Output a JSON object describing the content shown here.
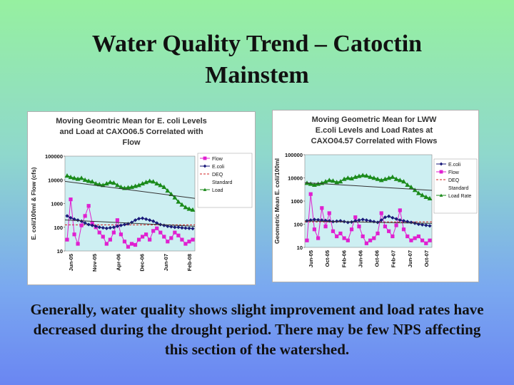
{
  "slide": {
    "title": "Water Quality Trend – Catoctin Mainstem",
    "caption": "Generally, water quality shows slight improvement and load rates have decreased during the drought period.  There may be few NPS affecting this section of the watershed."
  },
  "colors": {
    "plot_bg": "#cdeff2",
    "flow": "#e020d0",
    "ecoli": "#1a1a7a",
    "deq": "#d02020",
    "load": "#1a8a1a",
    "trend": "#333333"
  },
  "chart_data": [
    {
      "type": "line",
      "title_lines": [
        "Moving Geomtric Mean for E. coli Levels",
        "and Load at CAXO06.5 Correlated with",
        "Flow"
      ],
      "ylabel": "E. coli/100ml & Flow (cfs)",
      "yscale": "log",
      "ylim": [
        10,
        100000
      ],
      "yticks": [
        "100000",
        "10000",
        "1000",
        "100",
        "10"
      ],
      "xticks": [
        "Jun-05",
        "Nov-05",
        "Apr-06",
        "Dec-06",
        "Jun-07",
        "Feb-08"
      ],
      "legend": [
        "Flow",
        "E.coli",
        "DEQ",
        "Standard",
        "Load"
      ],
      "legend_position": "right",
      "deq_standard": 126,
      "series": [
        {
          "name": "Flow",
          "values": [
            30,
            1500,
            50,
            20,
            120,
            300,
            800,
            150,
            100,
            60,
            40,
            20,
            30,
            60,
            200,
            50,
            25,
            15,
            20,
            18,
            30,
            40,
            50,
            30,
            70,
            90,
            60,
            40,
            25,
            35,
            60,
            45,
            30,
            20,
            25,
            30
          ]
        },
        {
          "name": "E.coli",
          "values": [
            300,
            250,
            220,
            200,
            180,
            150,
            130,
            120,
            110,
            100,
            95,
            90,
            95,
            100,
            110,
            120,
            130,
            140,
            160,
            200,
            230,
            240,
            220,
            200,
            180,
            150,
            130,
            120,
            110,
            105,
            100,
            100,
            95,
            92,
            90,
            88
          ]
        },
        {
          "name": "Load",
          "values": [
            15000,
            13000,
            12000,
            11000,
            12000,
            10000,
            9000,
            8500,
            7000,
            6500,
            6000,
            7000,
            8000,
            7500,
            6000,
            5000,
            4500,
            4800,
            5000,
            5500,
            6000,
            7000,
            8000,
            9000,
            8500,
            7000,
            6000,
            5000,
            3500,
            2500,
            1800,
            1200,
            900,
            700,
            600,
            550
          ]
        }
      ]
    },
    {
      "type": "line",
      "title_lines": [
        "Moving Geometric Mean for LWW",
        "E.coli Levels and Load Rates at",
        "CAXO04.57 Correlated with Flows"
      ],
      "ylabel": "Geometric Mean E. coli/100ml",
      "yscale": "log",
      "ylim": [
        10,
        100000
      ],
      "yticks": [
        "100000",
        "10000",
        "1000",
        "100",
        "10"
      ],
      "xticks": [
        "Jun-05",
        "Oct-05",
        "Feb-06",
        "Jun-06",
        "Oct-06",
        "Feb-07",
        "Jun-07",
        "Oct-07"
      ],
      "legend": [
        "E.coli",
        "Flow",
        "DEQ",
        "Standard",
        "Load Rate"
      ],
      "legend_position": "right",
      "deq_standard": 126,
      "series": [
        {
          "name": "Flow",
          "values": [
            20,
            2000,
            60,
            25,
            500,
            80,
            300,
            50,
            30,
            40,
            25,
            20,
            60,
            200,
            80,
            30,
            15,
            20,
            25,
            40,
            300,
            80,
            50,
            30,
            90,
            400,
            60,
            30,
            20,
            25,
            30,
            20,
            15,
            20
          ]
        },
        {
          "name": "E.coli",
          "values": [
            140,
            150,
            160,
            155,
            150,
            145,
            140,
            130,
            135,
            140,
            130,
            120,
            125,
            140,
            150,
            160,
            150,
            140,
            130,
            120,
            150,
            200,
            220,
            190,
            170,
            150,
            140,
            130,
            120,
            110,
            100,
            95,
            90,
            85
          ]
        },
        {
          "name": "Load Rate",
          "values": [
            6000,
            5500,
            5000,
            5500,
            6000,
            7000,
            8000,
            7500,
            6500,
            7000,
            9000,
            10000,
            9500,
            11000,
            12000,
            13000,
            12500,
            11000,
            10000,
            9000,
            8000,
            9000,
            10000,
            11000,
            9000,
            8000,
            7000,
            5000,
            4000,
            3000,
            2200,
            1800,
            1500,
            1300
          ]
        }
      ]
    }
  ]
}
